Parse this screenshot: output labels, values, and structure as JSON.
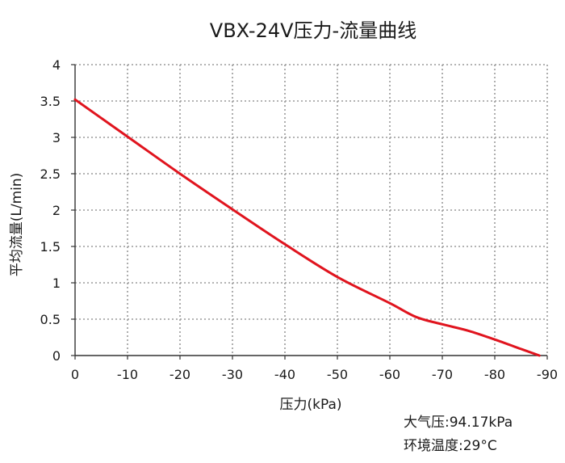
{
  "chart_data": {
    "type": "line",
    "title": "VBX-24V压力-流量曲线",
    "xlabel": "压力(kPa)",
    "ylabel": "平均流量(L/min)",
    "xlim": [
      0,
      -90
    ],
    "ylim": [
      0,
      4
    ],
    "x_ticks": [
      0,
      -10,
      -20,
      -30,
      -40,
      -50,
      -60,
      -70,
      -80,
      -90
    ],
    "x_tick_labels": [
      "0",
      "-10",
      "-20",
      "-30",
      "-40",
      "-50",
      "-60",
      "-70",
      "-80",
      "-90"
    ],
    "y_ticks": [
      0,
      0.5,
      1,
      1.5,
      2,
      2.5,
      3,
      3.5,
      4
    ],
    "y_tick_labels": [
      "0",
      "0.5",
      "1",
      "1.5",
      "2",
      "2.5",
      "3",
      "3.5",
      "4"
    ],
    "grid": true,
    "series": [
      {
        "color": "#e0141e",
        "x": [
          0,
          -10,
          -20,
          -30,
          -40,
          -50,
          -60,
          -65,
          -70,
          -75,
          -80,
          -85,
          -88.5
        ],
        "y": [
          3.52,
          3.01,
          2.5,
          2.01,
          1.53,
          1.08,
          0.72,
          0.53,
          0.43,
          0.34,
          0.22,
          0.09,
          0.0
        ]
      }
    ],
    "annotations": {
      "atmospheric_pressure": "大气压:94.17kPa",
      "ambient_temperature": "环境温度:29°C"
    }
  }
}
